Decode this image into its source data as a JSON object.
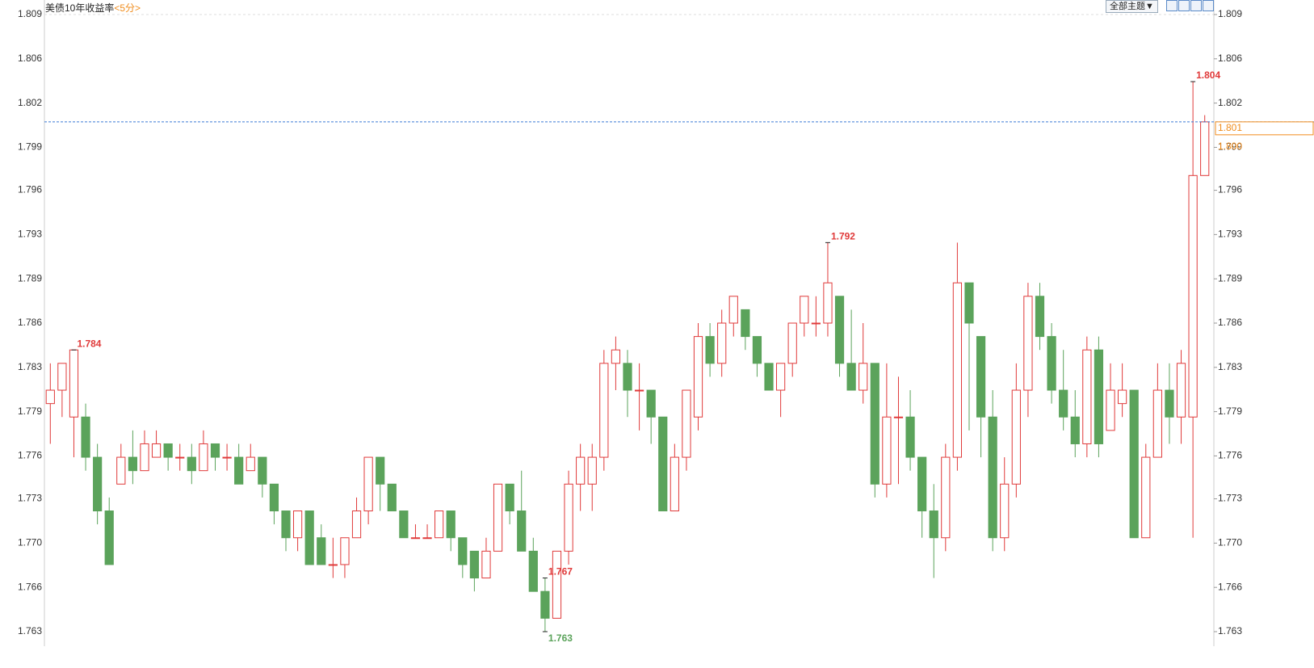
{
  "chart_data": {
    "type": "candlestick",
    "title": "美债10年收益率",
    "period": "<5分>",
    "theme_button": "全部主题▼",
    "up_color": "#e03a3a",
    "down_color": "#5ba35b",
    "last_line_color": "#3a7bd5",
    "tag_color": "#f08c1c",
    "ylim": [
      1.763,
      1.809
    ],
    "yticks": [
      {
        "value": 1.763,
        "label": "1.763"
      },
      {
        "value": 1.7663,
        "label": "1.766"
      },
      {
        "value": 1.7696,
        "label": "1.770"
      },
      {
        "value": 1.7729,
        "label": "1.773"
      },
      {
        "value": 1.7761,
        "label": "1.776"
      },
      {
        "value": 1.7794,
        "label": "1.779"
      },
      {
        "value": 1.7827,
        "label": "1.783"
      },
      {
        "value": 1.786,
        "label": "1.786"
      },
      {
        "value": 1.7893,
        "label": "1.789"
      },
      {
        "value": 1.7926,
        "label": "1.793"
      },
      {
        "value": 1.7959,
        "label": "1.796"
      },
      {
        "value": 1.7991,
        "label": "1.799"
      },
      {
        "value": 1.8024,
        "label": "1.802"
      },
      {
        "value": 1.8057,
        "label": "1.806"
      },
      {
        "value": 1.809,
        "label": "1.809"
      }
    ],
    "ohlc": [
      [
        1.78,
        1.783,
        1.777,
        1.781
      ],
      [
        1.781,
        1.783,
        1.779,
        1.783
      ],
      [
        1.779,
        1.784,
        1.776,
        1.784
      ],
      [
        1.779,
        1.78,
        1.775,
        1.776
      ],
      [
        1.776,
        1.777,
        1.771,
        1.772
      ],
      [
        1.772,
        1.773,
        1.768,
        1.768
      ],
      [
        1.774,
        1.777,
        1.774,
        1.776
      ],
      [
        1.776,
        1.778,
        1.774,
        1.775
      ],
      [
        1.775,
        1.778,
        1.775,
        1.777
      ],
      [
        1.776,
        1.778,
        1.776,
        1.777
      ],
      [
        1.777,
        1.777,
        1.775,
        1.776
      ],
      [
        1.776,
        1.777,
        1.775,
        1.776
      ],
      [
        1.776,
        1.777,
        1.774,
        1.775
      ],
      [
        1.775,
        1.778,
        1.775,
        1.777
      ],
      [
        1.777,
        1.777,
        1.775,
        1.776
      ],
      [
        1.776,
        1.777,
        1.775,
        1.776
      ],
      [
        1.776,
        1.777,
        1.774,
        1.774
      ],
      [
        1.775,
        1.777,
        1.775,
        1.776
      ],
      [
        1.776,
        1.776,
        1.773,
        1.774
      ],
      [
        1.774,
        1.774,
        1.771,
        1.772
      ],
      [
        1.772,
        1.772,
        1.769,
        1.77
      ],
      [
        1.77,
        1.772,
        1.769,
        1.772
      ],
      [
        1.772,
        1.772,
        1.768,
        1.768
      ],
      [
        1.77,
        1.771,
        1.768,
        1.768
      ],
      [
        1.768,
        1.77,
        1.767,
        1.768
      ],
      [
        1.768,
        1.77,
        1.767,
        1.77
      ],
      [
        1.77,
        1.773,
        1.77,
        1.772
      ],
      [
        1.772,
        1.776,
        1.771,
        1.776
      ],
      [
        1.776,
        1.776,
        1.772,
        1.774
      ],
      [
        1.774,
        1.774,
        1.772,
        1.772
      ],
      [
        1.772,
        1.772,
        1.77,
        1.77
      ],
      [
        1.77,
        1.771,
        1.77,
        1.77
      ],
      [
        1.77,
        1.771,
        1.77,
        1.77
      ],
      [
        1.77,
        1.772,
        1.77,
        1.772
      ],
      [
        1.772,
        1.772,
        1.769,
        1.77
      ],
      [
        1.77,
        1.77,
        1.767,
        1.768
      ],
      [
        1.769,
        1.769,
        1.766,
        1.767
      ],
      [
        1.767,
        1.77,
        1.767,
        1.769
      ],
      [
        1.769,
        1.774,
        1.769,
        1.774
      ],
      [
        1.774,
        1.774,
        1.771,
        1.772
      ],
      [
        1.772,
        1.775,
        1.769,
        1.769
      ],
      [
        1.769,
        1.77,
        1.766,
        1.766
      ],
      [
        1.766,
        1.767,
        1.763,
        1.764
      ],
      [
        1.764,
        1.769,
        1.764,
        1.769
      ],
      [
        1.769,
        1.775,
        1.768,
        1.774
      ],
      [
        1.774,
        1.777,
        1.772,
        1.776
      ],
      [
        1.774,
        1.777,
        1.772,
        1.776
      ],
      [
        1.776,
        1.784,
        1.775,
        1.783
      ],
      [
        1.783,
        1.785,
        1.781,
        1.784
      ],
      [
        1.783,
        1.784,
        1.779,
        1.781
      ],
      [
        1.781,
        1.783,
        1.778,
        1.781
      ],
      [
        1.781,
        1.781,
        1.777,
        1.779
      ],
      [
        1.779,
        1.779,
        1.772,
        1.772
      ],
      [
        1.772,
        1.777,
        1.772,
        1.776
      ],
      [
        1.776,
        1.781,
        1.775,
        1.781
      ],
      [
        1.779,
        1.786,
        1.778,
        1.785
      ],
      [
        1.785,
        1.786,
        1.782,
        1.783
      ],
      [
        1.783,
        1.787,
        1.782,
        1.786
      ],
      [
        1.786,
        1.788,
        1.785,
        1.788
      ],
      [
        1.787,
        1.787,
        1.784,
        1.785
      ],
      [
        1.785,
        1.785,
        1.782,
        1.783
      ],
      [
        1.783,
        1.783,
        1.781,
        1.781
      ],
      [
        1.781,
        1.783,
        1.779,
        1.783
      ],
      [
        1.783,
        1.786,
        1.782,
        1.786
      ],
      [
        1.786,
        1.788,
        1.785,
        1.788
      ],
      [
        1.786,
        1.788,
        1.785,
        1.786
      ],
      [
        1.786,
        1.792,
        1.785,
        1.789
      ],
      [
        1.788,
        1.788,
        1.782,
        1.783
      ],
      [
        1.783,
        1.787,
        1.781,
        1.781
      ],
      [
        1.781,
        1.786,
        1.78,
        1.783
      ],
      [
        1.783,
        1.783,
        1.773,
        1.774
      ],
      [
        1.774,
        1.783,
        1.773,
        1.779
      ],
      [
        1.779,
        1.782,
        1.774,
        1.779
      ],
      [
        1.779,
        1.781,
        1.775,
        1.776
      ],
      [
        1.776,
        1.776,
        1.77,
        1.772
      ],
      [
        1.772,
        1.774,
        1.767,
        1.77
      ],
      [
        1.77,
        1.777,
        1.769,
        1.776
      ],
      [
        1.776,
        1.792,
        1.775,
        1.789
      ],
      [
        1.789,
        1.789,
        1.778,
        1.786
      ],
      [
        1.785,
        1.785,
        1.776,
        1.779
      ],
      [
        1.779,
        1.781,
        1.769,
        1.77
      ],
      [
        1.77,
        1.776,
        1.769,
        1.774
      ],
      [
        1.774,
        1.783,
        1.773,
        1.781
      ],
      [
        1.781,
        1.789,
        1.779,
        1.788
      ],
      [
        1.788,
        1.789,
        1.784,
        1.785
      ],
      [
        1.785,
        1.786,
        1.78,
        1.781
      ],
      [
        1.781,
        1.784,
        1.778,
        1.779
      ],
      [
        1.779,
        1.781,
        1.776,
        1.777
      ],
      [
        1.777,
        1.785,
        1.776,
        1.784
      ],
      [
        1.784,
        1.785,
        1.776,
        1.777
      ],
      [
        1.778,
        1.783,
        1.778,
        1.781
      ],
      [
        1.78,
        1.783,
        1.779,
        1.781
      ],
      [
        1.781,
        1.781,
        1.77,
        1.77
      ],
      [
        1.77,
        1.777,
        1.77,
        1.776
      ],
      [
        1.776,
        1.783,
        1.776,
        1.781
      ],
      [
        1.781,
        1.783,
        1.777,
        1.779
      ],
      [
        1.779,
        1.784,
        1.777,
        1.783
      ],
      [
        1.779,
        1.804,
        1.77,
        1.797
      ],
      [
        1.797,
        1.8015,
        1.797,
        1.801
      ]
    ],
    "annotations": [
      {
        "value": 1.784,
        "label": "1.784"
      },
      {
        "value": 1.763,
        "label": "1.763"
      },
      {
        "value": 1.792,
        "label": "1.792"
      },
      {
        "value": 1.767,
        "label": "1.767"
      },
      {
        "value": 1.804,
        "label": "1.804"
      }
    ],
    "last_price": {
      "value": 1.801,
      "label": "1.801"
    },
    "reference_price": {
      "value": 1.8,
      "label": "1.800"
    }
  }
}
